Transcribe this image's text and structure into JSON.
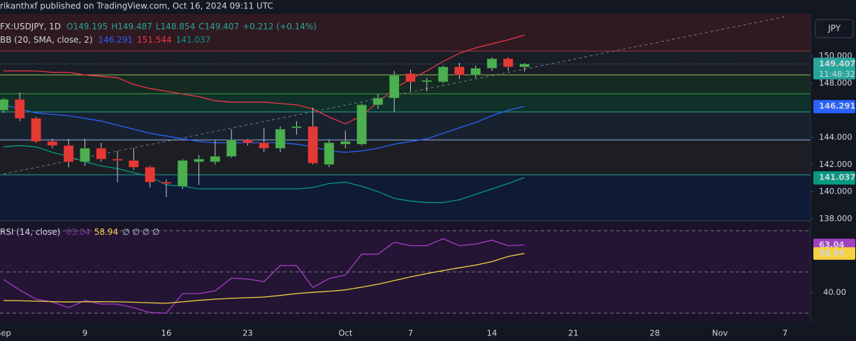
{
  "header": "rikanthxf published on TradingView.com, Oct 16, 2024 09:11 UTC",
  "currency": "JPY",
  "countdown": "11:48:32",
  "chart_data": [
    {
      "type": "candlestick",
      "symbol": "FX:USDJPY, 1D",
      "ohlc_text": [
        "O149.195",
        "H149.487",
        "L148.854",
        "C149.407",
        "+0.212 (+0.14%)"
      ],
      "indicator": "BB (20, SMA, close, 2)",
      "up_color": "#26a69a",
      "down_color": "#ef3b34",
      "open": [
        146.0,
        146.8,
        145.4,
        143.7,
        143.4,
        142.2,
        143.2,
        142.4,
        142.3,
        141.8,
        140.7,
        140.4,
        142.2,
        142.2,
        142.6,
        143.8,
        143.6,
        143.2,
        144.7,
        144.8,
        142.0,
        143.5,
        143.5,
        146.4,
        146.9,
        148.7,
        148.1,
        148.1,
        149.2,
        148.6,
        149.1,
        149.8,
        149.195,
        null,
        null,
        null,
        null,
        null,
        null,
        null,
        null,
        null,
        null,
        null,
        null,
        null,
        null,
        null,
        null
      ],
      "high": [
        146.9,
        147.3,
        145.5,
        143.9,
        143.9,
        143.9,
        143.6,
        143.0,
        143.2,
        141.9,
        140.9,
        142.4,
        142.7,
        143.8,
        144.6,
        143.9,
        144.7,
        144.8,
        145.2,
        146.2,
        143.8,
        144.5,
        146.5,
        147.2,
        148.9,
        149.0,
        148.4,
        149.3,
        149.5,
        149.3,
        149.9,
        149.9,
        149.487,
        null,
        null,
        null,
        null,
        null,
        null,
        null,
        null,
        null,
        null,
        null,
        null,
        null,
        null,
        null,
        null
      ],
      "low": [
        145.8,
        145.2,
        143.6,
        143.2,
        141.8,
        141.9,
        142.2,
        140.7,
        141.6,
        140.3,
        139.6,
        140.2,
        140.5,
        142.0,
        142.5,
        143.4,
        142.9,
        142.9,
        144.2,
        142.0,
        141.8,
        143.2,
        143.4,
        146.1,
        145.9,
        147.4,
        147.4,
        148.0,
        148.3,
        148.4,
        148.9,
        148.9,
        148.854,
        null,
        null,
        null,
        null,
        null,
        null,
        null,
        null,
        null,
        null,
        null,
        null,
        null,
        null,
        null,
        null
      ],
      "close": [
        146.8,
        145.4,
        143.7,
        143.4,
        142.2,
        143.2,
        142.4,
        142.3,
        141.8,
        140.7,
        140.6,
        142.3,
        142.4,
        142.6,
        143.8,
        143.6,
        143.2,
        144.6,
        144.8,
        142.1,
        143.6,
        143.7,
        146.4,
        146.9,
        148.6,
        148.1,
        148.2,
        149.2,
        148.6,
        149.1,
        149.8,
        149.2,
        149.407,
        null,
        null,
        null,
        null,
        null,
        null,
        null,
        null,
        null,
        null,
        null,
        null,
        null,
        null,
        null,
        null
      ],
      "series": [
        {
          "color": "#2962ff",
          "values": [
            146.4,
            146.1,
            145.8,
            145.7,
            145.6,
            145.4,
            145.2,
            144.9,
            144.6,
            144.3,
            144.1,
            143.9,
            143.7,
            143.6,
            143.6,
            143.6,
            143.6,
            143.6,
            143.5,
            143.3,
            143.0,
            142.9,
            143.0,
            143.2,
            143.5,
            143.7,
            143.9,
            144.3,
            144.7,
            145.1,
            145.6,
            146.0,
            146.291,
            null,
            null,
            null,
            null,
            null,
            null,
            null,
            null,
            null,
            null,
            null,
            null,
            null,
            null,
            null,
            null
          ]
        },
        {
          "color": "#f23645",
          "values": [
            148.9,
            148.9,
            148.9,
            148.8,
            148.8,
            148.6,
            148.5,
            148.4,
            147.9,
            147.6,
            147.4,
            147.2,
            147.0,
            146.7,
            146.6,
            146.6,
            146.6,
            146.5,
            146.4,
            146.1,
            145.5,
            145.0,
            145.6,
            146.6,
            147.6,
            148.3,
            148.9,
            149.6,
            150.2,
            150.6,
            150.9,
            151.2,
            151.544,
            null,
            null,
            null,
            null,
            null,
            null,
            null,
            null,
            null,
            null,
            null,
            null,
            null,
            null,
            null,
            null
          ]
        },
        {
          "color": "#089981",
          "values": [
            143.3,
            143.4,
            143.3,
            142.9,
            142.6,
            142.2,
            141.9,
            141.7,
            141.4,
            141.1,
            140.5,
            140.4,
            140.2,
            140.2,
            140.2,
            140.2,
            140.2,
            140.2,
            140.2,
            140.3,
            140.6,
            140.7,
            140.4,
            140.0,
            139.5,
            139.3,
            139.2,
            139.2,
            139.4,
            139.8,
            140.2,
            140.6,
            141.037,
            null,
            null,
            null,
            null,
            null,
            null,
            null,
            null,
            null,
            null,
            null,
            null,
            null,
            null,
            null,
            null
          ]
        }
      ],
      "levels": [
        {
          "value": 150.36,
          "color": "#9c3a44"
        },
        {
          "value": 148.61,
          "color": "#9fbf5f"
        },
        {
          "value": 147.22,
          "color": "#43a047"
        },
        {
          "value": 145.88,
          "color": "#26a69a"
        },
        {
          "value": 143.81,
          "color": "#90b4e8"
        },
        {
          "value": 141.24,
          "color": "#2a9d8f"
        }
      ],
      "trendline": [
        141.3,
        152.9
      ],
      "ylim": [
        137.9,
        153.1
      ],
      "yticks": [
        {
          "value": 150,
          "label": "150.000"
        },
        {
          "value": 148,
          "label": "148.000"
        },
        {
          "value": 144,
          "label": "144.000"
        },
        {
          "value": 142,
          "label": "142.000"
        },
        {
          "value": 140,
          "label": "140.000"
        },
        {
          "value": 138,
          "label": "138.000"
        }
      ]
    },
    {
      "type": "line",
      "indicator": "RSI (14, close)",
      "na_text": "∅ ∅ ∅ ∅",
      "categories": [
        "Sep",
        null,
        null,
        null,
        null,
        "9",
        null,
        null,
        null,
        null,
        "16",
        null,
        null,
        null,
        null,
        "23",
        null,
        null,
        null,
        null,
        null,
        "Oct",
        null,
        null,
        null,
        "7",
        null,
        null,
        null,
        null,
        "14",
        null,
        null,
        null,
        null,
        "21",
        null,
        null,
        null,
        null,
        "28",
        null,
        null,
        null,
        "Nov",
        null,
        null,
        null,
        "7"
      ],
      "series": [
        {
          "color": "#a33fc4",
          "values": [
            46.3,
            41.2,
            36.8,
            35.4,
            32.7,
            36.1,
            34.4,
            34.4,
            32.7,
            30.3,
            30.0,
            39.5,
            39.5,
            40.8,
            47.0,
            46.5,
            45.3,
            53.1,
            53.1,
            42.4,
            46.8,
            48.5,
            58.6,
            58.6,
            64.4,
            62.7,
            62.7,
            66.1,
            62.7,
            63.5,
            65.4,
            62.7,
            63.04,
            null,
            null,
            null,
            null,
            null,
            null,
            null,
            null,
            null,
            null,
            null,
            null,
            null,
            null,
            null,
            null
          ]
        },
        {
          "color": "#f5d142",
          "values": [
            36.1,
            36.0,
            35.8,
            35.6,
            35.4,
            35.5,
            35.6,
            35.5,
            35.3,
            35.0,
            34.8,
            35.5,
            36.2,
            36.8,
            37.2,
            37.5,
            37.8,
            38.6,
            39.5,
            40.1,
            40.6,
            41.3,
            42.6,
            44.0,
            45.8,
            47.6,
            49.2,
            50.6,
            52.0,
            53.3,
            55.0,
            57.5,
            58.94,
            null,
            null,
            null,
            null,
            null,
            null,
            null,
            null,
            null,
            null,
            null,
            null,
            null,
            null,
            null,
            null
          ]
        }
      ],
      "bands": [
        70,
        50,
        30
      ],
      "ylim": [
        25.3,
        74.1
      ],
      "yticks": [
        {
          "value": 40,
          "label": "40.00"
        }
      ]
    }
  ]
}
